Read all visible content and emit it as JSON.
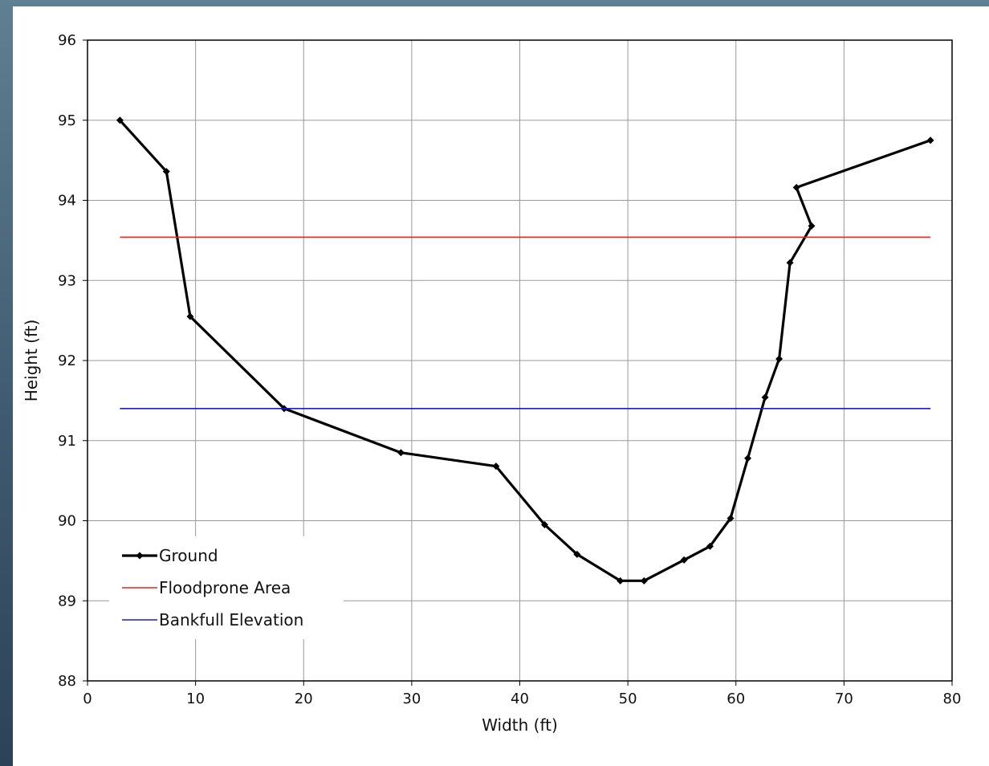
{
  "chart_data": {
    "type": "line",
    "xlabel": "Width (ft)",
    "ylabel": "Height (ft)",
    "xlim": [
      0,
      80
    ],
    "ylim": [
      88,
      96
    ],
    "xticks": [
      0,
      10,
      20,
      30,
      40,
      50,
      60,
      70,
      80
    ],
    "yticks": [
      88,
      89,
      90,
      91,
      92,
      93,
      94,
      95,
      96
    ],
    "grid": true,
    "legend_position": "bottom-left",
    "series": [
      {
        "name": "Ground",
        "color": "#000000",
        "marker": "diamond",
        "x": [
          3,
          7.3,
          9.5,
          18.2,
          29,
          37.8,
          42.3,
          45.3,
          49.3,
          51.5,
          55.2,
          57.6,
          59.5,
          61.1,
          62.7,
          64,
          65,
          67,
          65.6,
          78
        ],
        "y": [
          95.0,
          94.36,
          92.55,
          91.4,
          90.85,
          90.68,
          89.95,
          89.58,
          89.25,
          89.25,
          89.51,
          89.68,
          90.03,
          90.78,
          91.54,
          92.02,
          93.22,
          93.68,
          94.16,
          94.75
        ]
      },
      {
        "name": "Floodprone Area",
        "color": "#e8231c",
        "x": [
          3,
          78
        ],
        "y": [
          93.54,
          93.54
        ]
      },
      {
        "name": "Bankfull Elevation",
        "color": "#1a1ad6",
        "x": [
          3,
          78
        ],
        "y": [
          91.4,
          91.4
        ]
      }
    ]
  }
}
